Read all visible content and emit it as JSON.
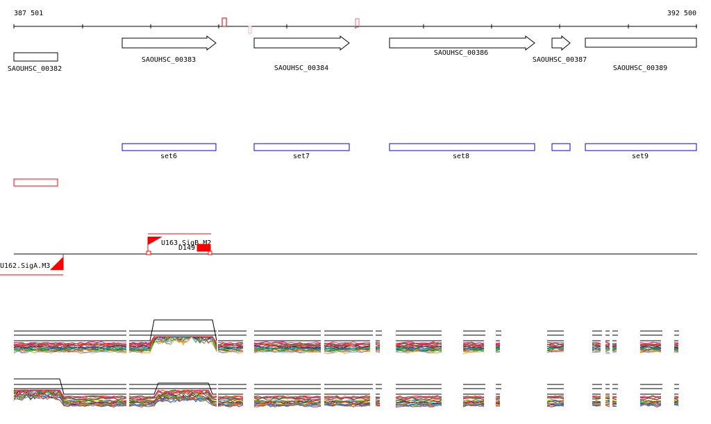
{
  "ruler": {
    "start_label": "387 501",
    "end_label": "392 500"
  },
  "genes": [
    {
      "id": "SAOUHSC_00382",
      "label": "SAOUHSC_00382",
      "strand": "none"
    },
    {
      "id": "SAOUHSC_00383",
      "label": "SAOUHSC_00383",
      "strand": "+"
    },
    {
      "id": "SAOUHSC_00384",
      "label": "SAOUHSC_00384",
      "strand": "+"
    },
    {
      "id": "SAOUHSC_00386",
      "label": "SAOUHSC_00386",
      "strand": "+"
    },
    {
      "id": "SAOUHSC_00387",
      "label": "SAOUHSC_00387",
      "strand": "+"
    },
    {
      "id": "SAOUHSC_00389",
      "label": "SAOUHSC_00389",
      "strand": "none"
    }
  ],
  "sets": [
    {
      "label": "set6"
    },
    {
      "label": "set7"
    },
    {
      "label": "set8"
    },
    {
      "label": ""
    },
    {
      "label": "set9"
    }
  ],
  "promoters": [
    {
      "label": "U163.SigB.M2",
      "strand": "+"
    },
    {
      "label": "U162.SigA.M3",
      "strand": "-"
    }
  ],
  "features": [
    {
      "label": "D149"
    }
  ],
  "colors": {
    "gene_stroke": "#000000",
    "set_stroke": "#0000cc",
    "highlight": "#ff0000",
    "marker": "#cc0000"
  }
}
